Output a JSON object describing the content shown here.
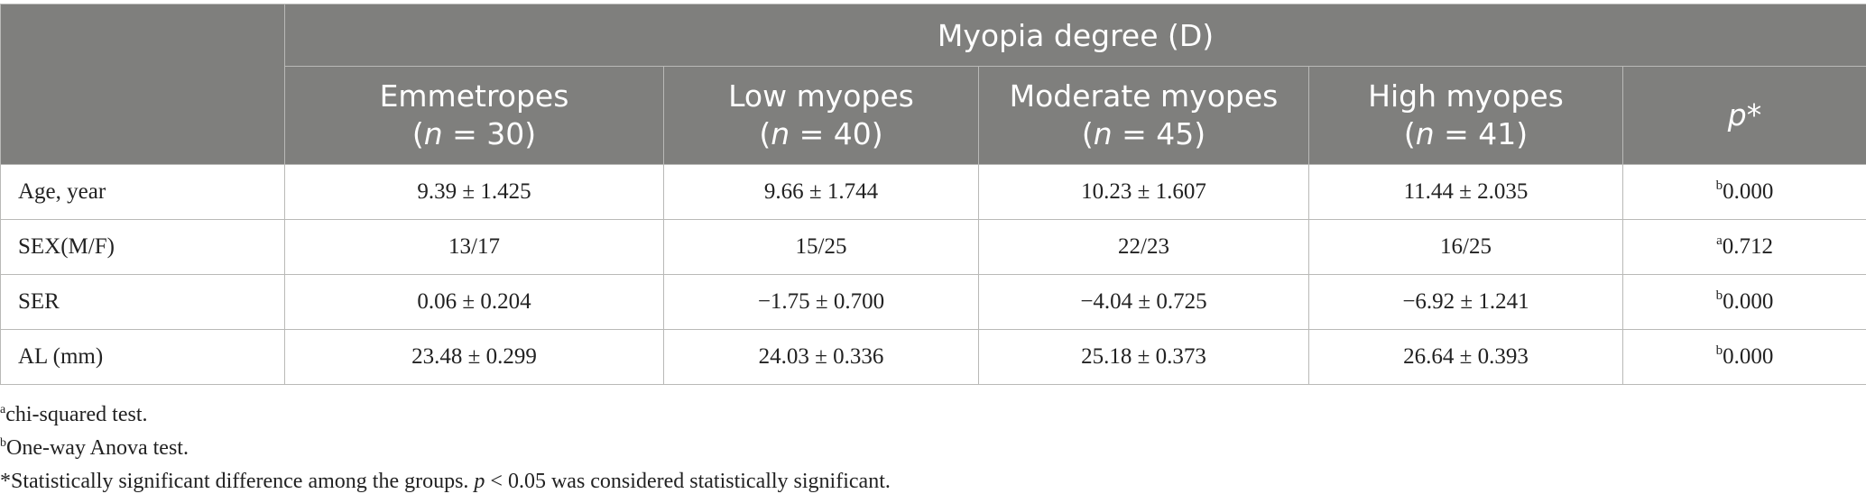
{
  "table": {
    "group_header": "Myopia degree (D)",
    "columns": [
      {
        "name": "Emmetropes",
        "n_prefix": "(",
        "n_label": "n",
        "n_value": " = 30)"
      },
      {
        "name": "Low myopes",
        "n_prefix": "(",
        "n_label": "n",
        "n_value": " = 40)"
      },
      {
        "name": "Moderate myopes",
        "n_prefix": "(",
        "n_label": "n",
        "n_value": " = 45)"
      },
      {
        "name": "High myopes",
        "n_prefix": "(",
        "n_label": "n",
        "n_value": " = 41)"
      },
      {
        "name": "p*"
      }
    ],
    "rows": [
      {
        "label": "Age, year",
        "values": [
          "9.39 ± 1.425",
          "9.66 ± 1.744",
          "10.23 ± 1.607",
          "11.44 ± 2.035"
        ],
        "p_mark": "b",
        "p_value": "0.000"
      },
      {
        "label": "SEX(M/F)",
        "values": [
          "13/17",
          "15/25",
          "22/23",
          "16/25"
        ],
        "p_mark": "a",
        "p_value": "0.712"
      },
      {
        "label": "SER",
        "values": [
          "0.06 ± 0.204",
          "−1.75 ± 0.700",
          "−4.04 ± 0.725",
          "−6.92 ± 1.241"
        ],
        "p_mark": "b",
        "p_value": "0.000"
      },
      {
        "label": "AL (mm)",
        "values": [
          "23.48 ± 0.299",
          "24.03 ± 0.336",
          "25.18 ± 0.373",
          "26.64 ± 0.393"
        ],
        "p_mark": "b",
        "p_value": "0.000"
      }
    ]
  },
  "footnotes": {
    "a": {
      "mark": "a",
      "text": "chi-squared test."
    },
    "b": {
      "mark": "b",
      "text": "One-way Anova test."
    },
    "star": {
      "text_before": "*Statistically significant difference among the groups. ",
      "p": "p",
      "text_after": " < 0.05 was considered statistically significant."
    }
  }
}
